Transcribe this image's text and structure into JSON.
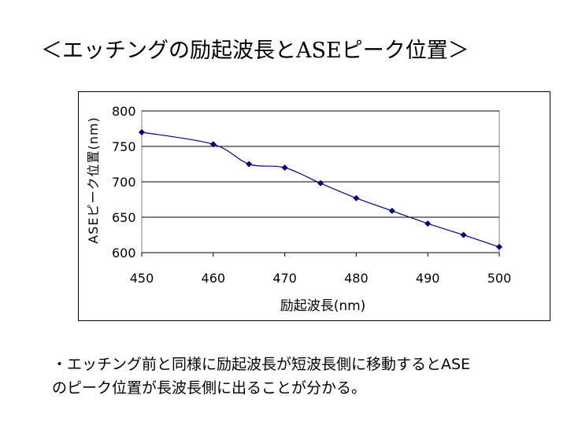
{
  "slide": {
    "title": "＜エッチングの励起波長とASEピーク位置＞",
    "note_line1": "・エッチング前と同様に励起波長が短波長側に移動するとASE",
    "note_line2": "のピーク位置が長波長側に出ることが分かる。"
  },
  "chart_data": {
    "type": "line",
    "title": "",
    "xlabel": "励起波長(nm)",
    "ylabel": "ASEピーク位置(nm)",
    "xlim": [
      450,
      500
    ],
    "ylim": [
      600,
      800
    ],
    "xticks": [
      450,
      460,
      470,
      480,
      490,
      500
    ],
    "yticks": [
      600,
      650,
      700,
      750,
      800
    ],
    "grid": true,
    "legend": "none",
    "series": [
      {
        "x": [
          450,
          460,
          465,
          470,
          475,
          480,
          485,
          490,
          495,
          500
        ],
        "y": [
          770,
          753,
          725,
          720,
          698,
          677,
          659,
          641,
          625,
          608
        ],
        "color": "#000080"
      }
    ]
  }
}
